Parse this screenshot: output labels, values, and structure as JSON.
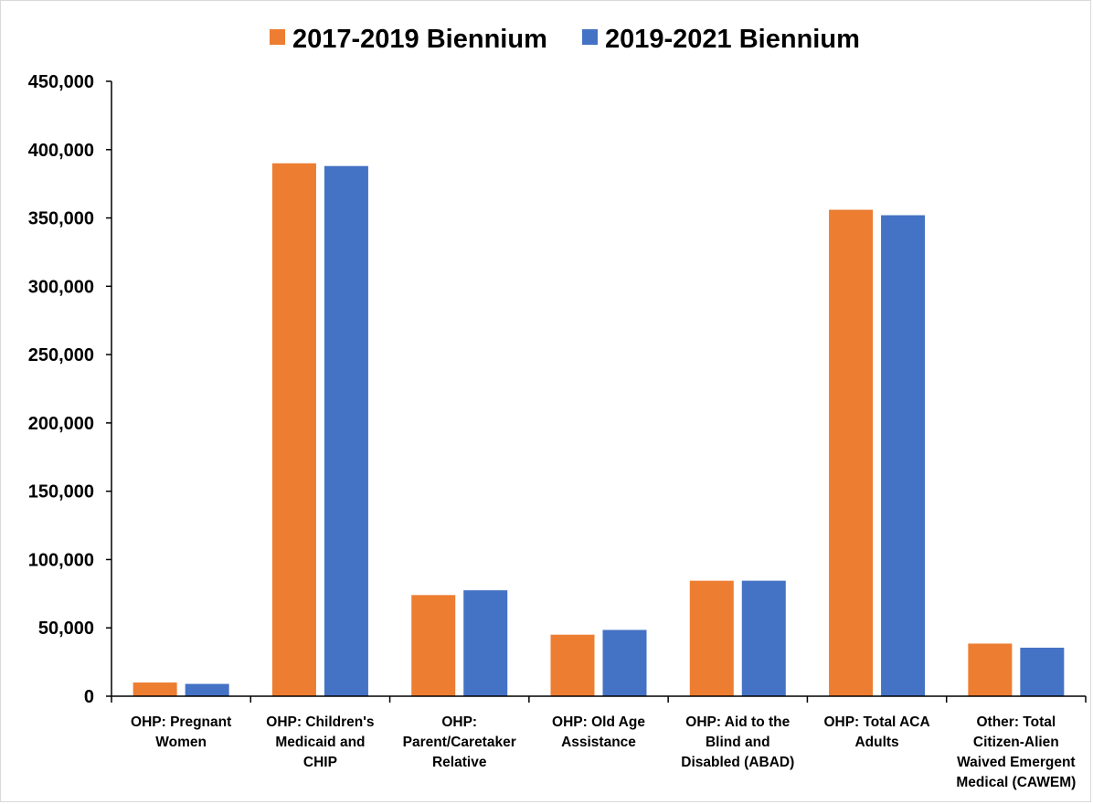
{
  "chart_data": {
    "type": "bar",
    "title": "",
    "xlabel": "",
    "ylabel": "",
    "ylim": [
      0,
      450000
    ],
    "yticks": [
      0,
      50000,
      100000,
      150000,
      200000,
      250000,
      300000,
      350000,
      400000,
      450000
    ],
    "ytick_labels": [
      "0",
      "50,000",
      "100,000",
      "150,000",
      "200,000",
      "250,000",
      "300,000",
      "350,000",
      "400,000",
      "450,000"
    ],
    "grid": false,
    "legend_position": "top-center",
    "categories": [
      [
        "OHP: Pregnant",
        "Women"
      ],
      [
        "OHP: Children's",
        "Medicaid and",
        "CHIP"
      ],
      [
        "OHP:",
        "Parent/Caretaker",
        "Relative"
      ],
      [
        "OHP: Old Age",
        "Assistance"
      ],
      [
        "OHP: Aid to the",
        "Blind and",
        "Disabled (ABAD)"
      ],
      [
        "OHP: Total ACA",
        "Adults"
      ],
      [
        "Other: Total",
        "Citizen-Alien",
        "Waived Emergent",
        "Medical (CAWEM)"
      ]
    ],
    "series": [
      {
        "name": "2017-2019 Biennium",
        "color": "#ED7D31",
        "values": [
          10000,
          390000,
          74000,
          45000,
          84500,
          356000,
          38500
        ]
      },
      {
        "name": "2019-2021 Biennium",
        "color": "#4472C4",
        "values": [
          9000,
          388000,
          77500,
          48500,
          84500,
          352000,
          35500
        ]
      }
    ]
  }
}
